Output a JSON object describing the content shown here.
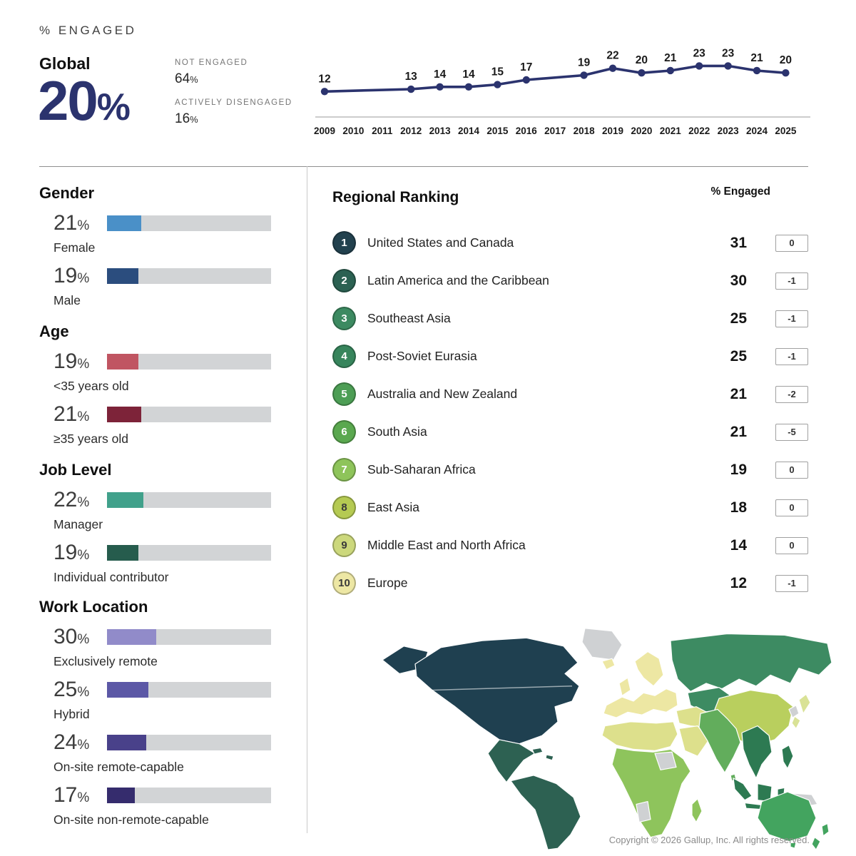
{
  "header": {
    "kicker": "% ENGAGED",
    "global_label": "Global",
    "global_value": "20",
    "percent_sign": "%",
    "not_engaged_label": "NOT ENGAGED",
    "not_engaged_value": "64",
    "actively_disengaged_label": "ACTIVELY DISENGAGED",
    "actively_disengaged_value": "16"
  },
  "chart_data": [
    {
      "type": "line",
      "title": "% Engaged Global trend",
      "x": [
        2009,
        2010,
        2011,
        2012,
        2013,
        2014,
        2015,
        2016,
        2017,
        2018,
        2019,
        2020,
        2021,
        2022,
        2023,
        2024,
        2025
      ],
      "values": [
        12,
        null,
        null,
        13,
        14,
        14,
        15,
        17,
        null,
        19,
        22,
        20,
        21,
        23,
        23,
        21,
        20
      ],
      "ylim": [
        10,
        25
      ],
      "line_color": "#2b336e",
      "label_color": "#1a1a1a",
      "axis_color": "#9a9a9a",
      "point_labels": true,
      "grid": false,
      "legend": "none"
    },
    {
      "type": "bar",
      "title": "Gender",
      "categories": [
        "Female",
        "Male"
      ],
      "values": [
        21,
        19
      ],
      "colors": [
        "#4a90c8",
        "#2b4d7e"
      ],
      "track_color": "#d2d4d6",
      "xlim": [
        0,
        100
      ],
      "unit": "%"
    },
    {
      "type": "bar",
      "title": "Age",
      "categories": [
        "<35 years old",
        "≥35 years old"
      ],
      "values": [
        19,
        21
      ],
      "colors": [
        "#c05562",
        "#7d2339"
      ],
      "track_color": "#d2d4d6",
      "xlim": [
        0,
        100
      ],
      "unit": "%"
    },
    {
      "type": "bar",
      "title": "Job Level",
      "categories": [
        "Manager",
        "Individual contributor"
      ],
      "values": [
        22,
        19
      ],
      "colors": [
        "#41a18b",
        "#265c4d"
      ],
      "track_color": "#d2d4d6",
      "xlim": [
        0,
        100
      ],
      "unit": "%"
    },
    {
      "type": "bar",
      "title": "Work Location",
      "categories": [
        "Exclusively remote",
        "Hybrid",
        "On-site remote-capable",
        "On-site non-remote-capable"
      ],
      "values": [
        30,
        25,
        24,
        17
      ],
      "colors": [
        "#918bc9",
        "#5c58a6",
        "#49418a",
        "#352c6d"
      ],
      "track_color": "#d2d4d6",
      "xlim": [
        0,
        100
      ],
      "unit": "%"
    },
    {
      "type": "table",
      "title": "Regional Ranking",
      "value_header": "% Engaged",
      "rows": [
        {
          "rank": "1",
          "region": "United States and Canada",
          "value": "31",
          "change": "0",
          "circle_color": "#22414e",
          "number_color": "#ffffff"
        },
        {
          "rank": "2",
          "region": "Latin America and the Caribbean",
          "value": "30",
          "change": "-1",
          "circle_color": "#2b6152",
          "number_color": "#ffffff"
        },
        {
          "rank": "3",
          "region": "Southeast Asia",
          "value": "25",
          "change": "-1",
          "circle_color": "#3c8a61",
          "number_color": "#ffffff"
        },
        {
          "rank": "4",
          "region": "Post-Soviet Eurasia",
          "value": "25",
          "change": "-1",
          "circle_color": "#37855c",
          "number_color": "#ffffff"
        },
        {
          "rank": "5",
          "region": "Australia and New Zealand",
          "value": "21",
          "change": "-2",
          "circle_color": "#4d9e55",
          "number_color": "#ffffff"
        },
        {
          "rank": "6",
          "region": "South Asia",
          "value": "21",
          "change": "-5",
          "circle_color": "#5aa84f",
          "number_color": "#ffffff"
        },
        {
          "rank": "7",
          "region": "Sub-Saharan Africa",
          "value": "19",
          "change": "0",
          "circle_color": "#8ec45a",
          "number_color": "#ffffff"
        },
        {
          "rank": "8",
          "region": "East Asia",
          "value": "18",
          "change": "0",
          "circle_color": "#b5ca52",
          "number_color": "#3a3a3a"
        },
        {
          "rank": "9",
          "region": "Middle East and North Africa",
          "value": "14",
          "change": "0",
          "circle_color": "#ccd87c",
          "number_color": "#3a3a3a"
        },
        {
          "rank": "10",
          "region": "Europe",
          "value": "12",
          "change": "-1",
          "circle_color": "#ede7a4",
          "number_color": "#3a3a3a"
        }
      ]
    },
    {
      "type": "heatmap",
      "subtype": "world-choropleth",
      "title": "% Engaged by region (map)",
      "regions": [
        {
          "id": "united-states-canada",
          "name": "United States and Canada",
          "value": 31
        },
        {
          "id": "latin-america",
          "name": "Latin America and the Caribbean",
          "value": 30
        },
        {
          "id": "southeast-asia",
          "name": "Southeast Asia",
          "value": 25
        },
        {
          "id": "post-soviet-eurasia",
          "name": "Post-Soviet Eurasia",
          "value": 25
        },
        {
          "id": "australia-new-zealand",
          "name": "Australia and New Zealand",
          "value": 21
        },
        {
          "id": "south-asia",
          "name": "South Asia",
          "value": 21
        },
        {
          "id": "sub-saharan-africa",
          "name": "Sub-Saharan Africa",
          "value": 19
        },
        {
          "id": "east-asia",
          "name": "East Asia",
          "value": 18
        },
        {
          "id": "east-asia-light",
          "name": "East Asia (Japan)",
          "value": 18
        },
        {
          "id": "middle-east-north-africa",
          "name": "Middle East and North Africa",
          "value": 14
        },
        {
          "id": "europe",
          "name": "Europe",
          "value": 12
        }
      ],
      "colors": {
        "united-states-canada": "#1f4050",
        "latin-america": "#2d6152",
        "post-soviet-eurasia": "#3d8b62",
        "southeast-asia": "#2d7a52",
        "australia-new-zealand": "#43a45f",
        "south-asia": "#62ad5c",
        "sub-saharan-africa": "#8ec45c",
        "east-asia": "#b9cf5e",
        "east-asia-light": "#d9e296",
        "middle-east-north-africa": "#dde08c",
        "europe": "#ede7a3"
      },
      "no_data_color": "#cfd1d3"
    }
  ],
  "footer": {
    "copyright": "Copyright © 2026 Gallup, Inc. All rights reserved."
  }
}
